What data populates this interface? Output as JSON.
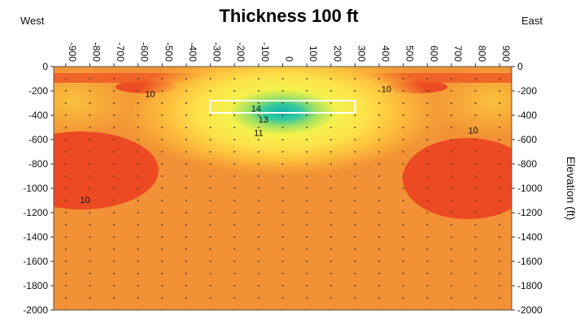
{
  "chart_data": {
    "type": "heatmap",
    "title": "Thickness 100 ft",
    "left_label": "West",
    "right_label": "East",
    "xlabel": "",
    "ylabel": "Elevation (ft)",
    "x_ticks": [
      "-900",
      "-800",
      "-700",
      "-600",
      "-500",
      "-400",
      "-300",
      "-200",
      "-100",
      "0",
      "100",
      "200",
      "300",
      "400",
      "500",
      "600",
      "700",
      "800",
      "900"
    ],
    "y_ticks": [
      "0",
      "-200",
      "-400",
      "-600",
      "-800",
      "-1000",
      "-1200",
      "-1400",
      "-1600",
      "-1800",
      "-2000"
    ],
    "xlim": [
      -950,
      950
    ],
    "ylim": [
      -2000,
      0
    ],
    "grid_points": true,
    "colors": {
      "background": "#f29135",
      "low": "#ec4a22",
      "mid": "#fbb737",
      "high": "#f6f14b",
      "peak": "#18c0a3",
      "outline": "#ffffff"
    },
    "contour_labels": [
      {
        "text": "10",
        "x": -550,
        "y": -250
      },
      {
        "text": "10",
        "x": 430,
        "y": -210
      },
      {
        "text": "10",
        "x": 790,
        "y": -550
      },
      {
        "text": "10",
        "x": -820,
        "y": -1120
      },
      {
        "text": "14",
        "x": -110,
        "y": -370
      },
      {
        "text": "13",
        "x": -80,
        "y": -460
      },
      {
        "text": "11",
        "x": -100,
        "y": -570
      }
    ],
    "body_outline": {
      "x_from": -300,
      "x_to": 300,
      "y_from": -280,
      "y_to": -380
    }
  }
}
